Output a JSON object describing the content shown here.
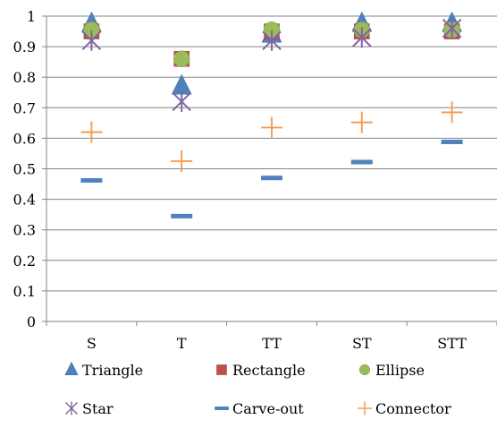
{
  "chart_data": {
    "type": "scatter",
    "categories": [
      "S",
      "T",
      "TT",
      "ST",
      "STT"
    ],
    "y_ticks": [
      "0",
      "0.1",
      "0.2",
      "0.3",
      "0.4",
      "0.5",
      "0.6",
      "0.7",
      "0.8",
      "0.9",
      "1"
    ],
    "ylim": [
      0,
      1
    ],
    "grid": "horizontal major",
    "legend_position": "bottom",
    "series": [
      {
        "name": "Triangle",
        "marker": "triangle",
        "color": "#4f81bd",
        "values": [
          0.975,
          0.77,
          0.94,
          0.975,
          0.975
        ]
      },
      {
        "name": "Rectangle",
        "marker": "square",
        "color": "#c0504d",
        "values": [
          0.95,
          0.86,
          0.95,
          0.95,
          0.95
        ]
      },
      {
        "name": "Ellipse",
        "marker": "circle",
        "color": "#9bbb59",
        "values": [
          0.955,
          0.86,
          0.955,
          0.955,
          0.955
        ]
      },
      {
        "name": "Star",
        "marker": "star",
        "color": "#8064a2",
        "values": [
          0.92,
          0.72,
          0.92,
          0.93,
          0.96
        ]
      },
      {
        "name": "Carve-out",
        "marker": "dash",
        "color": "#4f81bd",
        "values": [
          0.462,
          0.345,
          0.47,
          0.522,
          0.588
        ]
      },
      {
        "name": "Connector",
        "marker": "plus",
        "color": "#f79646",
        "values": [
          0.62,
          0.525,
          0.635,
          0.652,
          0.685
        ]
      }
    ]
  }
}
